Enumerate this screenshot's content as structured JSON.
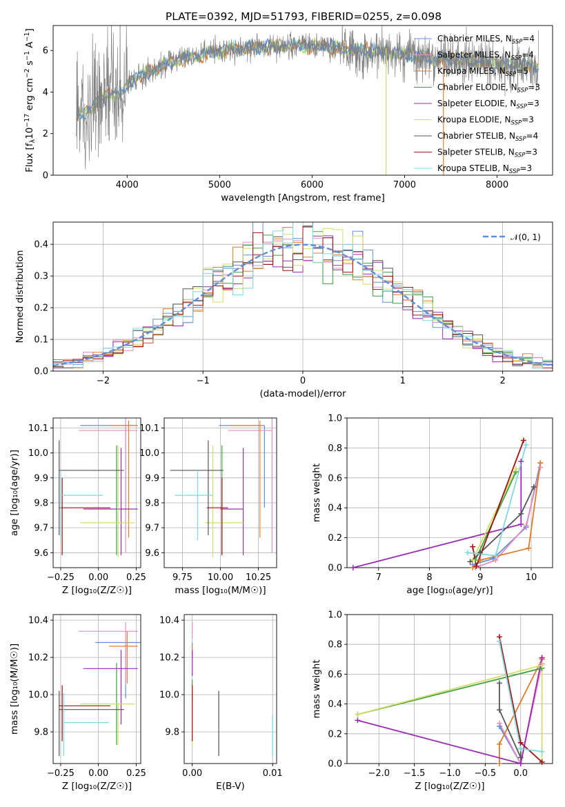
{
  "figure_title": "PLATE=0392, MJD=51793, FIBERID=0255, z=0.098",
  "colors": {
    "Chabrier MILES": "#5b8fdc",
    "Salpeter MILES": "#e98bbd",
    "Kroupa MILES": "#e07b2a",
    "Chabrier ELODIE": "#3aa13a",
    "Salpeter ELODIE": "#9a2ab4",
    "Kroupa ELODIE": "#d2dc6a",
    "Chabrier STELIB": "#555555",
    "Salpeter STELIB": "#a01010",
    "Kroupa STELIB": "#7ed8e0",
    "data": "#808080",
    "normal": "#5b8fdc"
  },
  "chart_data": [
    {
      "id": "spectrum",
      "type": "line",
      "title": "PLATE=0392, MJD=51793, FIBERID=0255, z=0.098",
      "xlabel": "wavelength [Angstrom, rest frame]",
      "ylabel_parts": [
        "Flux [f",
        "λ",
        "10",
        "−17",
        " erg cm",
        "−2",
        " s",
        "−1",
        " A",
        "−1",
        "]"
      ],
      "xlim": [
        3200,
        8600
      ],
      "ylim": [
        0,
        7.2
      ],
      "xticks": [
        4000,
        5000,
        6000,
        7000,
        8000
      ],
      "yticks": [
        0,
        2,
        4,
        6
      ],
      "grid": false,
      "legend_position": "top-right",
      "legend": [
        {
          "label": "Chabrier MILES",
          "nssp": "4"
        },
        {
          "label": "Salpeter MILES",
          "nssp": "4"
        },
        {
          "label": "Kroupa MILES",
          "nssp": "5"
        },
        {
          "label": "Chabrier ELODIE",
          "nssp": "3"
        },
        {
          "label": "Salpeter ELODIE",
          "nssp": "3"
        },
        {
          "label": "Kroupa ELODIE",
          "nssp": "3"
        },
        {
          "label": "Chabrier STELIB",
          "nssp": "4"
        },
        {
          "label": "Salpeter STELIB",
          "nssp": "3"
        },
        {
          "label": "Kroupa STELIB",
          "nssp": "3"
        }
      ],
      "nssp_label": "N",
      "nssp_sub": "SSP",
      "continuum": [
        [
          3450,
          2.7
        ],
        [
          3600,
          3.2
        ],
        [
          3700,
          3.6
        ],
        [
          3800,
          3.9
        ],
        [
          3950,
          3.9
        ],
        [
          4000,
          4.4
        ],
        [
          4100,
          4.7
        ],
        [
          4300,
          5.1
        ],
        [
          4500,
          5.5
        ],
        [
          4800,
          5.8
        ],
        [
          5000,
          6.0
        ],
        [
          5200,
          6.1
        ],
        [
          5600,
          6.2
        ],
        [
          6000,
          6.25
        ],
        [
          6400,
          6.05
        ],
        [
          6800,
          5.9
        ],
        [
          7000,
          5.8
        ],
        [
          7200,
          5.7
        ],
        [
          7500,
          5.55
        ],
        [
          7800,
          5.45
        ],
        [
          8000,
          5.35
        ],
        [
          8200,
          5.3
        ],
        [
          8400,
          5.2
        ]
      ]
    },
    {
      "id": "residuals",
      "type": "line",
      "xlabel": "(data-model)/error",
      "ylabel": "Normed distribution",
      "xlim": [
        -2.5,
        2.5
      ],
      "ylim": [
        0,
        0.47
      ],
      "xticks": [
        -2,
        -1,
        0,
        1,
        2
      ],
      "yticks": [
        0.0,
        0.1,
        0.2,
        0.3,
        0.4
      ],
      "grid": true,
      "legend_position": "top-right",
      "legend_label": "𝒩(0, 1)",
      "bin_width": 0.1
    },
    {
      "id": "age-vs-Z",
      "type": "scatter",
      "xlabel": "Z [log₁₀(Z/Z☉)]",
      "ylabel": "age  [log₁₀(age/yr)]",
      "xlim": [
        -0.3,
        0.28
      ],
      "ylim": [
        9.54,
        10.14
      ],
      "xticks": [
        -0.25,
        0.0,
        0.25
      ],
      "xticklabels": [
        "−0.25",
        "0.00",
        "0.25"
      ],
      "yticks": [
        9.6,
        9.7,
        9.8,
        9.9,
        10.0,
        10.1
      ],
      "grid": true,
      "points": [
        {
          "model": "Chabrier MILES",
          "x": 0.18,
          "xerr": [
            0.3,
            0.08
          ],
          "y": 10.11,
          "yerr": [
            0.33,
            0.0
          ]
        },
        {
          "model": "Salpeter MILES",
          "x": 0.18,
          "xerr": [
            0.31,
            0.08
          ],
          "y": 10.09,
          "yerr": [
            0.49,
            0.05
          ]
        },
        {
          "model": "Kroupa MILES",
          "x": 0.2,
          "xerr": [
            0.13,
            0.06
          ],
          "y": 10.11,
          "yerr": [
            0.45,
            0.02
          ]
        },
        {
          "model": "Chabrier ELODIE",
          "x": 0.12,
          "xerr": [
            0.0,
            0.0
          ],
          "y": 9.8,
          "yerr": [
            0.21,
            0.23
          ]
        },
        {
          "model": "Salpeter ELODIE",
          "x": 0.15,
          "xerr": [
            0.25,
            0.11
          ],
          "y": 9.775,
          "yerr": [
            0.185,
            0.245
          ]
        },
        {
          "model": "Kroupa ELODIE",
          "x": 0.13,
          "xerr": [
            0.25,
            0.11
          ],
          "y": 9.72,
          "yerr": [
            0.14,
            0.31
          ]
        },
        {
          "model": "Chabrier STELIB",
          "x": -0.26,
          "xerr": [
            0.0,
            0.43
          ],
          "y": 9.93,
          "yerr": [
            0.26,
            0.12
          ]
        },
        {
          "model": "Salpeter STELIB",
          "x": -0.24,
          "xerr": [
            0.02,
            0.32
          ],
          "y": 9.78,
          "yerr": [
            0.19,
            0.12
          ]
        },
        {
          "model": "Kroupa STELIB",
          "x": -0.25,
          "xerr": [
            0.0,
            0.28
          ],
          "y": 9.83,
          "yerr": [
            0.18,
            0.1
          ]
        }
      ]
    },
    {
      "id": "age-vs-mass",
      "type": "scatter",
      "xlabel": "mass [log₁₀(M/M☉)]",
      "xlim": [
        9.63,
        10.37
      ],
      "ylim": [
        9.54,
        10.14
      ],
      "xticks": [
        9.75,
        10.0,
        10.25
      ],
      "xticklabels": [
        "9.75",
        "10.00",
        "10.25"
      ],
      "yticks": [
        9.6,
        9.7,
        9.8,
        9.9,
        10.0,
        10.1
      ],
      "grid": true,
      "points": [
        {
          "model": "Chabrier MILES",
          "x": 10.29,
          "xerr": [
            0.3,
            0.0
          ],
          "y": 10.11,
          "yerr": [
            0.33,
            0.0
          ]
        },
        {
          "model": "Salpeter MILES",
          "x": 10.34,
          "xerr": [
            0.29,
            0.0
          ],
          "y": 10.09,
          "yerr": [
            0.49,
            0.05
          ]
        },
        {
          "model": "Kroupa MILES",
          "x": 10.26,
          "xerr": [
            0.2,
            0.0
          ],
          "y": 10.11,
          "yerr": [
            0.45,
            0.02
          ]
        },
        {
          "model": "Chabrier ELODIE",
          "x": 10.01,
          "xerr": [
            0.0,
            0.0
          ],
          "y": 9.8,
          "yerr": [
            0.21,
            0.23
          ]
        },
        {
          "model": "Salpeter ELODIE",
          "x": 10.15,
          "xerr": [
            0.15,
            0.0
          ],
          "y": 9.775,
          "yerr": [
            0.185,
            0.245
          ]
        },
        {
          "model": "Kroupa ELODIE",
          "x": 9.95,
          "xerr": [
            0.05,
            0.2
          ],
          "y": 9.72,
          "yerr": [
            0.14,
            0.31
          ]
        },
        {
          "model": "Chabrier STELIB",
          "x": 9.92,
          "xerr": [
            0.25,
            0.1
          ],
          "y": 9.93,
          "yerr": [
            0.26,
            0.12
          ]
        },
        {
          "model": "Salpeter STELIB",
          "x": 10.01,
          "xerr": [
            0.1,
            0.04
          ],
          "y": 9.78,
          "yerr": [
            0.19,
            0.12
          ]
        },
        {
          "model": "Kroupa STELIB",
          "x": 9.85,
          "xerr": [
            0.15,
            0.1
          ],
          "y": 9.83,
          "yerr": [
            0.18,
            0.1
          ]
        }
      ]
    },
    {
      "id": "weight-vs-age",
      "type": "line",
      "xlabel": "age  [log₁₀(age/yr)]",
      "ylabel": "mass weight",
      "xlim": [
        6.38,
        10.42
      ],
      "ylim": [
        0,
        1.0
      ],
      "xticks": [
        7,
        8,
        9,
        10
      ],
      "yticks": [
        0.0,
        0.2,
        0.4,
        0.6,
        0.8,
        1.0
      ],
      "grid": true,
      "series": [
        {
          "model": "Chabrier MILES",
          "x": [
            8.85,
            9.25,
            9.9,
            10.18
          ],
          "y": [
            0.02,
            0.06,
            0.27,
            0.7
          ]
        },
        {
          "model": "Salpeter MILES",
          "x": [
            8.9,
            9.3,
            9.9,
            10.18
          ],
          "y": [
            0.0,
            0.05,
            0.28,
            0.67
          ]
        },
        {
          "model": "Kroupa MILES",
          "x": [
            8.85,
            9.0,
            9.95,
            10.18
          ],
          "y": [
            0.0,
            0.05,
            0.13,
            0.7
          ]
        },
        {
          "model": "Chabrier ELODIE",
          "x": [
            8.9,
            9.7
          ],
          "y": [
            0.05,
            0.64
          ]
        },
        {
          "model": "Salpeter ELODIE",
          "x": [
            6.5,
            9.8,
            9.8
          ],
          "y": [
            0.0,
            0.29,
            0.71
          ]
        },
        {
          "model": "Kroupa ELODIE",
          "x": [
            8.85,
            9.7
          ],
          "y": [
            0.05,
            0.66
          ]
        },
        {
          "model": "Chabrier STELIB",
          "x": [
            8.8,
            9.0,
            9.8,
            10.05
          ],
          "y": [
            0.04,
            0.1,
            0.36,
            0.54
          ]
        },
        {
          "model": "Salpeter STELIB",
          "x": [
            8.85,
            8.92,
            9.85
          ],
          "y": [
            0.14,
            0.01,
            0.85
          ]
        },
        {
          "model": "Kroupa STELIB",
          "x": [
            8.75,
            9.3,
            9.9
          ],
          "y": [
            0.1,
            0.08,
            0.82
          ]
        }
      ]
    },
    {
      "id": "mass-vs-Z",
      "type": "scatter",
      "xlabel": "Z [log₁₀(Z/Z☉)]",
      "ylabel": "mass [log₁₀(M/M☉)]",
      "xlim": [
        -0.3,
        0.28
      ],
      "ylim": [
        9.63,
        10.43
      ],
      "xticks": [
        -0.25,
        0.0,
        0.25
      ],
      "xticklabels": [
        "−0.25",
        "0.00",
        "0.25"
      ],
      "yticks": [
        9.8,
        10.0,
        10.2,
        10.4
      ],
      "grid": true,
      "points": [
        {
          "model": "Chabrier MILES",
          "x": 0.18,
          "xerr": [
            0.2,
            0.1
          ],
          "y": 10.28,
          "yerr": [
            0.3,
            0.0
          ]
        },
        {
          "model": "Salpeter MILES",
          "x": 0.18,
          "xerr": [
            0.31,
            0.08
          ],
          "y": 10.34,
          "yerr": [
            0.29,
            0.05
          ]
        },
        {
          "model": "Kroupa MILES",
          "x": 0.19,
          "xerr": [
            0.12,
            0.07
          ],
          "y": 10.26,
          "yerr": [
            0.2,
            0.08
          ]
        },
        {
          "model": "Chabrier ELODIE",
          "x": 0.12,
          "xerr": [
            0.0,
            0.0
          ],
          "y": 10.01,
          "yerr": [
            0.28,
            0.16
          ]
        },
        {
          "model": "Salpeter ELODIE",
          "x": 0.15,
          "xerr": [
            0.25,
            0.11
          ],
          "y": 10.14,
          "yerr": [
            0.3,
            0.1
          ]
        },
        {
          "model": "Kroupa ELODIE",
          "x": 0.13,
          "xerr": [
            0.25,
            0.11
          ],
          "y": 9.95,
          "yerr": [
            0.22,
            0.0
          ]
        },
        {
          "model": "Chabrier STELIB",
          "x": -0.26,
          "xerr": [
            0.0,
            0.43
          ],
          "y": 9.92,
          "yerr": [
            0.25,
            0.1
          ]
        },
        {
          "model": "Salpeter STELIB",
          "x": -0.24,
          "xerr": [
            0.02,
            0.32
          ],
          "y": 9.94,
          "yerr": [
            0.19,
            0.11
          ]
        },
        {
          "model": "Kroupa STELIB",
          "x": -0.23,
          "xerr": [
            0.0,
            0.3
          ],
          "y": 9.85,
          "yerr": [
            0.18,
            0.16
          ]
        }
      ]
    },
    {
      "id": "mass-vs-ebv",
      "type": "scatter",
      "xlabel": "E(B-V)",
      "xlim": [
        -0.001,
        0.0105
      ],
      "ylim": [
        9.63,
        10.43
      ],
      "xticks": [
        0.0,
        0.01
      ],
      "xticklabels": [
        "0.00",
        "0.01"
      ],
      "yticks": [
        9.8,
        10.0,
        10.2,
        10.4
      ],
      "grid": true,
      "points": [
        {
          "model": "Chabrier MILES",
          "x": 0.0,
          "xerr": [
            0.0,
            0.0
          ],
          "y": 10.28,
          "yerr": [
            0.02,
            0.0
          ]
        },
        {
          "model": "Salpeter MILES",
          "x": 0.0,
          "xerr": [
            0.0,
            0.0
          ],
          "y": 10.34,
          "yerr": [
            0.04,
            0.05
          ]
        },
        {
          "model": "Kroupa MILES",
          "x": 0.0,
          "xerr": [
            0.0,
            0.0
          ],
          "y": 10.26,
          "yerr": [
            0.06,
            0.0
          ]
        },
        {
          "model": "Chabrier ELODIE",
          "x": 0.0,
          "xerr": [
            0.0,
            0.0
          ],
          "y": 10.01,
          "yerr": [
            0.05,
            0.07
          ]
        },
        {
          "model": "Salpeter ELODIE",
          "x": 0.0,
          "xerr": [
            0.0,
            0.0
          ],
          "y": 10.14,
          "yerr": [
            0.04,
            0.1
          ]
        },
        {
          "model": "Kroupa ELODIE",
          "x": 0.0,
          "xerr": [
            0.0,
            0.0
          ],
          "y": 9.95,
          "yerr": [
            0.22,
            0.0
          ]
        },
        {
          "model": "Chabrier STELIB",
          "x": 0.0033,
          "xerr": [
            0.0,
            0.0
          ],
          "y": 9.92,
          "yerr": [
            0.25,
            0.1
          ]
        },
        {
          "model": "Salpeter STELIB",
          "x": 0.0,
          "xerr": [
            0.0,
            0.0
          ],
          "y": 9.94,
          "yerr": [
            0.19,
            0.11
          ]
        },
        {
          "model": "Kroupa STELIB",
          "x": 0.01,
          "xerr": [
            0.0,
            0.0
          ],
          "y": 9.85,
          "yerr": [
            0.18,
            0.04
          ]
        }
      ]
    },
    {
      "id": "weight-vs-Z",
      "type": "line",
      "xlabel": "Z [log₁₀(Z/Z☉)]",
      "ylabel": "mass weight",
      "xlim": [
        -2.45,
        0.45
      ],
      "ylim": [
        0,
        1.0
      ],
      "xticks": [
        -2.0,
        -1.5,
        -1.0,
        -0.5,
        0.0
      ],
      "xticklabels": [
        "−2.0",
        "−1.5",
        "−1.0",
        "−0.5",
        "0.0"
      ],
      "yticks": [
        0.0,
        0.2,
        0.4,
        0.6,
        0.8,
        1.0
      ],
      "grid": true,
      "series": [
        {
          "model": "Chabrier MILES",
          "x": [
            -0.3,
            0.0,
            0.3
          ],
          "y": [
            0.25,
            0.0,
            0.7
          ]
        },
        {
          "model": "Salpeter MILES",
          "x": [
            -0.3,
            0.0,
            0.3
          ],
          "y": [
            0.27,
            0.0,
            0.67
          ]
        },
        {
          "model": "Kroupa MILES",
          "x": [
            -0.3,
            -0.3,
            0.3,
            0.3
          ],
          "y": [
            0.0,
            0.13,
            0.7,
            0.7
          ]
        },
        {
          "model": "Chabrier ELODIE",
          "x": [
            -2.3,
            0.3
          ],
          "y": [
            0.33,
            0.64
          ]
        },
        {
          "model": "Salpeter ELODIE",
          "x": [
            -2.3,
            0.0,
            0.3,
            0.3
          ],
          "y": [
            0.29,
            0.0,
            0.71,
            0.71
          ]
        },
        {
          "model": "Kroupa ELODIE",
          "x": [
            -2.3,
            0.3,
            0.3
          ],
          "y": [
            0.33,
            0.66,
            0.01
          ]
        },
        {
          "model": "Chabrier STELIB",
          "x": [
            -0.3,
            -0.3,
            0.0,
            0.0
          ],
          "y": [
            0.54,
            0.36,
            0.04,
            0.1
          ]
        },
        {
          "model": "Salpeter STELIB",
          "x": [
            -0.3,
            0.0,
            0.3
          ],
          "y": [
            0.85,
            0.14,
            0.01
          ]
        },
        {
          "model": "Kroupa STELIB",
          "x": [
            -0.3,
            0.0,
            0.3
          ],
          "y": [
            0.82,
            0.1,
            0.08
          ]
        }
      ]
    }
  ]
}
